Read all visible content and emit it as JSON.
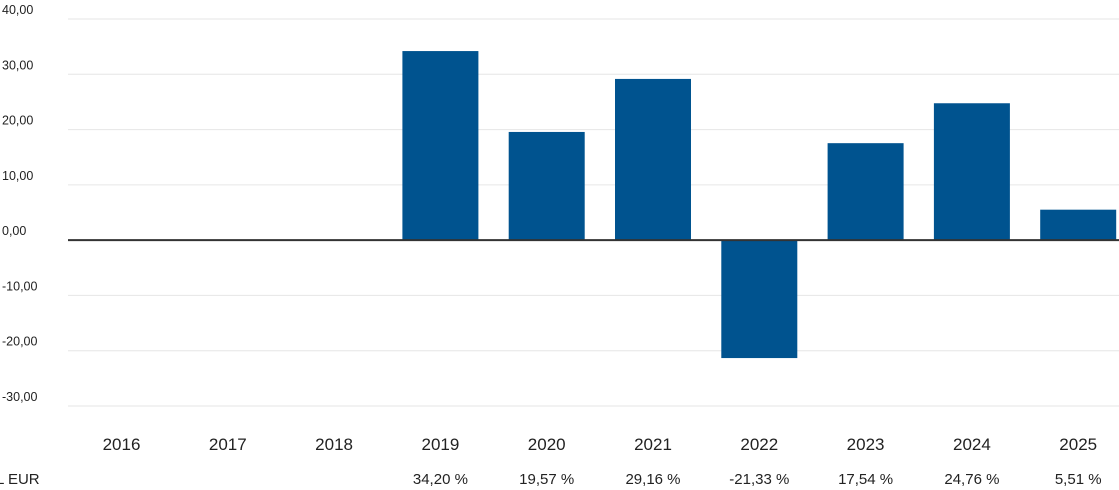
{
  "chart_data": {
    "type": "bar",
    "categories": [
      "2016",
      "2017",
      "2018",
      "2019",
      "2020",
      "2021",
      "2022",
      "2023",
      "2024",
      "2025"
    ],
    "series": [
      {
        "name": "L EUR",
        "values": [
          null,
          null,
          null,
          34.2,
          19.57,
          29.16,
          -21.33,
          17.54,
          24.76,
          5.51
        ],
        "labels": [
          "",
          "",
          "",
          "34,20 %",
          "19,57 %",
          "29,16 %",
          "-21,33 %",
          "17,54 %",
          "24,76 %",
          "5,51 %"
        ]
      }
    ],
    "y_ticks": [
      "40,00",
      "30,00",
      "20,00",
      "10,00",
      "0,00",
      "-10,00",
      "-20,00",
      "-30,00"
    ],
    "ylim": [
      -30,
      40
    ],
    "grid": true,
    "bar_color": "#00538f",
    "gridline_color": "#e6e6e6",
    "zero_line_color": "#333333"
  }
}
